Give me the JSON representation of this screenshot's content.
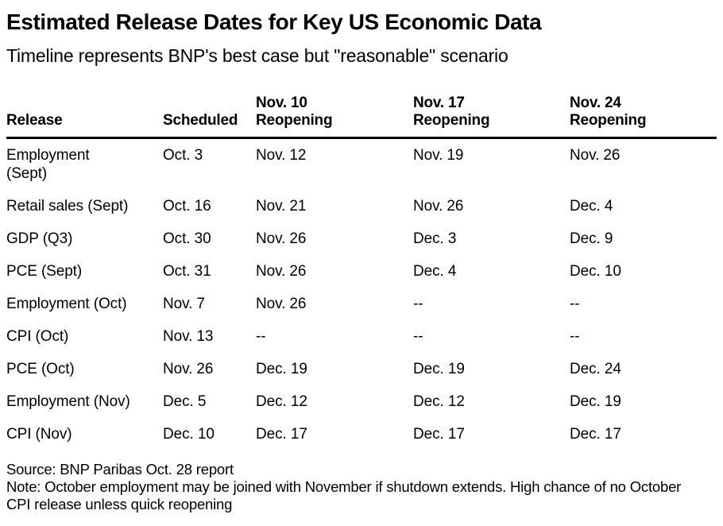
{
  "chart_data": {
    "type": "table",
    "title": "Estimated Release Dates for Key US Economic Data",
    "subtitle": "Timeline represents BNP's best case but \"reasonable\" scenario",
    "columns": [
      {
        "line1": "",
        "line2": "Release"
      },
      {
        "line1": "",
        "line2": "Scheduled"
      },
      {
        "line1": "Nov. 10",
        "line2": "Reopening"
      },
      {
        "line1": "Nov. 17",
        "line2": "Reopening"
      },
      {
        "line1": "Nov. 24",
        "line2": "Reopening"
      }
    ],
    "rows": [
      [
        "Employment\n(Sept)",
        "Oct. 3",
        "Nov. 12",
        "Nov. 19",
        "Nov. 26"
      ],
      [
        "Retail sales (Sept)",
        "Oct. 16",
        "Nov. 21",
        "Nov. 26",
        "Dec. 4"
      ],
      [
        "GDP (Q3)",
        "Oct. 30",
        "Nov. 26",
        "Dec. 3",
        "Dec. 9"
      ],
      [
        "PCE (Sept)",
        "Oct. 31",
        "Nov. 26",
        "Dec. 4",
        "Dec. 10"
      ],
      [
        "Employment (Oct)",
        "Nov. 7",
        "Nov. 26",
        "--",
        "--"
      ],
      [
        "CPI (Oct)",
        "Nov. 13",
        "--",
        "--",
        "--"
      ],
      [
        "PCE (Oct)",
        "Nov. 26",
        "Dec. 19",
        "Dec. 19",
        "Dec. 24"
      ],
      [
        "Employment (Nov)",
        "Dec. 5",
        "Dec. 12",
        "Dec. 12",
        "Dec. 19"
      ],
      [
        "CPI (Nov)",
        "Dec. 10",
        "Dec. 17",
        "Dec. 17",
        "Dec. 17"
      ]
    ],
    "source": "Source: BNP Paribas Oct. 28 report",
    "note": "Note: October employment may be joined with November if shutdown extends. High chance of no October\nCPI release unless quick reopening",
    "colors": {
      "text": "#000000",
      "background": "#ffffff",
      "header_rule": "#000000"
    },
    "layout": {
      "header_rule_thickness_px": 3,
      "grid": "none",
      "column_alignment": "left"
    }
  }
}
